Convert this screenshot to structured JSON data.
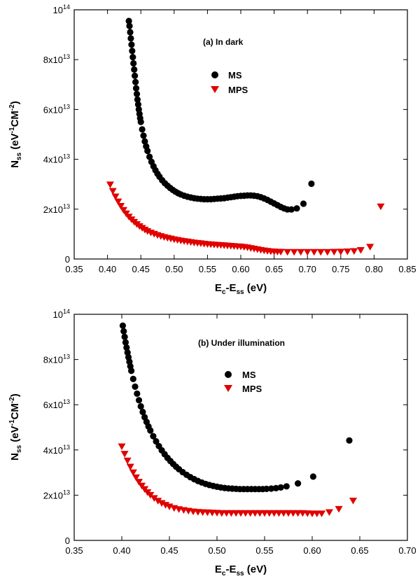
{
  "colors": {
    "MS": "#000000",
    "MPS": "#e00000"
  },
  "chart_data": [
    {
      "type": "scatter",
      "annotation": "(a) In dark",
      "title": "",
      "xlabel": {
        "main": "E",
        "sub1": "c",
        "mid": "-E",
        "sub2": "ss",
        "tail": " (eV)"
      },
      "ylabel": {
        "main": "N",
        "sub": "ss",
        "mid1": " (eV",
        "sup1": "-1",
        "mid2": "CM",
        "sup2": "-2",
        "tail": ")"
      },
      "xlim": [
        0.35,
        0.85
      ],
      "ylim": [
        0,
        100000000000000.0
      ],
      "xticks": [
        "0.35",
        "0.40",
        "0.45",
        "0.50",
        "0.55",
        "0.60",
        "0.65",
        "0.70",
        "0.75",
        "0.80",
        "0.85"
      ],
      "yticks": [
        {
          "value": 0,
          "base": "0",
          "exp": ""
        },
        {
          "value": 20000000000000.0,
          "base": "2x10",
          "exp": "13"
        },
        {
          "value": 40000000000000.0,
          "base": "4x10",
          "exp": "13"
        },
        {
          "value": 60000000000000.0,
          "base": "6x10",
          "exp": "13"
        },
        {
          "value": 80000000000000.0,
          "base": "8x10",
          "exp": "13"
        },
        {
          "value": 100000000000000.0,
          "base": "10",
          "exp": "14"
        }
      ],
      "legend": {
        "position": "upper-middle",
        "entries": [
          "MS",
          "MPS"
        ]
      },
      "series": [
        {
          "name": "MS",
          "marker": "circle",
          "x": [
            0.432,
            0.433,
            0.434,
            0.435,
            0.436,
            0.437,
            0.438,
            0.439,
            0.44,
            0.441,
            0.442,
            0.443,
            0.444,
            0.445,
            0.446,
            0.447,
            0.448,
            0.449,
            0.45,
            0.452,
            0.454,
            0.456,
            0.458,
            0.46,
            0.463,
            0.466,
            0.469,
            0.472,
            0.475,
            0.478,
            0.482,
            0.486,
            0.49,
            0.494,
            0.498,
            0.502,
            0.506,
            0.51,
            0.515,
            0.52,
            0.525,
            0.53,
            0.535,
            0.54,
            0.545,
            0.55,
            0.555,
            0.56,
            0.565,
            0.57,
            0.575,
            0.58,
            0.585,
            0.59,
            0.595,
            0.6,
            0.605,
            0.61,
            0.615,
            0.62,
            0.625,
            0.63,
            0.635,
            0.64,
            0.645,
            0.65,
            0.655,
            0.66,
            0.665,
            0.67,
            0.676,
            0.684,
            0.694,
            0.706
          ],
          "y": [
            95500000000000.0,
            93500000000000.0,
            91000000000000.0,
            88500000000000.0,
            86000000000000.0,
            83500000000000.0,
            81000000000000.0,
            78500000000000.0,
            76000000000000.0,
            73500000000000.0,
            71000000000000.0,
            68500000000000.0,
            66200000000000.0,
            64000000000000.0,
            62000000000000.0,
            60000000000000.0,
            58200000000000.0,
            56500000000000.0,
            55000000000000.0,
            52000000000000.0,
            49500000000000.0,
            47200000000000.0,
            45200000000000.0,
            43400000000000.0,
            41000000000000.0,
            39000000000000.0,
            37200000000000.0,
            35600000000000.0,
            34200000000000.0,
            33000000000000.0,
            31600000000000.0,
            30400000000000.0,
            29400000000000.0,
            28500000000000.0,
            27700000000000.0,
            27000000000000.0,
            26400000000000.0,
            25900000000000.0,
            25400000000000.0,
            25000000000000.0,
            24700000000000.0,
            24400000000000.0,
            24200000000000.0,
            24100000000000.0,
            24000000000000.0,
            24000000000000.0,
            24000000000000.0,
            24100000000000.0,
            24200000000000.0,
            24300000000000.0,
            24400000000000.0,
            24600000000000.0,
            24800000000000.0,
            25000000000000.0,
            25200000000000.0,
            25300000000000.0,
            25400000000000.0,
            25500000000000.0,
            25500000000000.0,
            25400000000000.0,
            25200000000000.0,
            24800000000000.0,
            24300000000000.0,
            23700000000000.0,
            23000000000000.0,
            22300000000000.0,
            21600000000000.0,
            20900000000000.0,
            20300000000000.0,
            19900000000000.0,
            19900000000000.0,
            20300000000000.0,
            22200000000000.0,
            30200000000000.0
          ]
        },
        {
          "name": "MPS",
          "marker": "triangle-down",
          "x": [
            0.404,
            0.408,
            0.412,
            0.416,
            0.42,
            0.424,
            0.428,
            0.432,
            0.436,
            0.44,
            0.444,
            0.448,
            0.452,
            0.456,
            0.46,
            0.465,
            0.47,
            0.475,
            0.48,
            0.485,
            0.49,
            0.495,
            0.5,
            0.505,
            0.51,
            0.515,
            0.52,
            0.525,
            0.53,
            0.535,
            0.54,
            0.545,
            0.55,
            0.555,
            0.56,
            0.565,
            0.57,
            0.575,
            0.58,
            0.585,
            0.59,
            0.595,
            0.6,
            0.605,
            0.61,
            0.615,
            0.62,
            0.625,
            0.63,
            0.635,
            0.64,
            0.645,
            0.65,
            0.655,
            0.66,
            0.67,
            0.68,
            0.69,
            0.7,
            0.71,
            0.72,
            0.73,
            0.74,
            0.75,
            0.76,
            0.77,
            0.78,
            0.794,
            0.81
          ],
          "y": [
            29800000000000.0,
            27200000000000.0,
            25000000000000.0,
            23000000000000.0,
            21200000000000.0,
            19600000000000.0,
            18200000000000.0,
            16900000000000.0,
            15800000000000.0,
            14800000000000.0,
            13900000000000.0,
            13100000000000.0,
            12400000000000.0,
            11700000000000.0,
            11100000000000.0,
            10500000000000.0,
            10000000000000.0,
            9500000000000.0,
            9100000000000.0,
            8700000000000.0,
            8400000000000.0,
            8100000000000.0,
            7800000000000.0,
            7550000000000.0,
            7300000000000.0,
            7100000000000.0,
            6900000000000.0,
            6700000000000.0,
            6500000000000.0,
            6350000000000.0,
            6200000000000.0,
            6050000000000.0,
            5900000000000.0,
            5800000000000.0,
            5700000000000.0,
            5600000000000.0,
            5500000000000.0,
            5400000000000.0,
            5300000000000.0,
            5200000000000.0,
            5100000000000.0,
            5000000000000.0,
            4900000000000.0,
            4750000000000.0,
            4550000000000.0,
            4300000000000.0,
            4050000000000.0,
            3800000000000.0,
            3550000000000.0,
            3350000000000.0,
            3150000000000.0,
            3000000000000.0,
            2900000000000.0,
            2850000000000.0,
            2800000000000.0,
            2750000000000.0,
            2750000000000.0,
            2750000000000.0,
            2750000000000.0,
            2750000000000.0,
            2750000000000.0,
            2750000000000.0,
            2800000000000.0,
            2850000000000.0,
            2950000000000.0,
            3100000000000.0,
            3500000000000.0,
            4800000000000.0,
            21000000000000.0
          ]
        }
      ]
    },
    {
      "type": "scatter",
      "annotation": "(b) Under illumination",
      "title": "",
      "xlabel": {
        "main": "E",
        "sub1": "c",
        "mid": "-E",
        "sub2": "ss",
        "tail": " (eV)"
      },
      "ylabel": {
        "main": "N",
        "sub": "ss",
        "mid1": " (eV",
        "sup1": "-1",
        "mid2": "CM",
        "sup2": "-2",
        "tail": ")"
      },
      "xlim": [
        0.35,
        0.7
      ],
      "ylim": [
        0,
        100000000000000.0
      ],
      "xticks": [
        "0.35",
        "0.40",
        "0.45",
        "0.50",
        "0.55",
        "0.60",
        "0.65",
        "0.70"
      ],
      "yticks": [
        {
          "value": 0,
          "base": "0",
          "exp": ""
        },
        {
          "value": 20000000000000.0,
          "base": "2x10",
          "exp": "13"
        },
        {
          "value": 40000000000000.0,
          "base": "4x10",
          "exp": "13"
        },
        {
          "value": 60000000000000.0,
          "base": "6x10",
          "exp": "13"
        },
        {
          "value": 80000000000000.0,
          "base": "8x10",
          "exp": "13"
        },
        {
          "value": 100000000000000.0,
          "base": "10",
          "exp": "14"
        }
      ],
      "legend": {
        "position": "upper-middle",
        "entries": [
          "MS",
          "MPS"
        ]
      },
      "series": [
        {
          "name": "MS",
          "marker": "circle",
          "x": [
            0.401,
            0.402,
            0.403,
            0.404,
            0.405,
            0.406,
            0.407,
            0.408,
            0.409,
            0.41,
            0.412,
            0.414,
            0.416,
            0.418,
            0.42,
            0.422,
            0.424,
            0.426,
            0.428,
            0.43,
            0.433,
            0.436,
            0.439,
            0.442,
            0.445,
            0.448,
            0.451,
            0.454,
            0.457,
            0.46,
            0.464,
            0.468,
            0.472,
            0.476,
            0.48,
            0.484,
            0.488,
            0.492,
            0.496,
            0.5,
            0.504,
            0.508,
            0.512,
            0.516,
            0.52,
            0.524,
            0.528,
            0.532,
            0.536,
            0.54,
            0.544,
            0.548,
            0.552,
            0.557,
            0.562,
            0.567,
            0.573,
            0.585,
            0.601,
            0.639
          ],
          "y": [
            95000000000000.0,
            92500000000000.0,
            90000000000000.0,
            87600000000000.0,
            85300000000000.0,
            83100000000000.0,
            81000000000000.0,
            79000000000000.0,
            77000000000000.0,
            75000000000000.0,
            71400000000000.0,
            68000000000000.0,
            64900000000000.0,
            62000000000000.0,
            59300000000000.0,
            56800000000000.0,
            54500000000000.0,
            52400000000000.0,
            50400000000000.0,
            48600000000000.0,
            46100000000000.0,
            43800000000000.0,
            41700000000000.0,
            39800000000000.0,
            38100000000000.0,
            36500000000000.0,
            35100000000000.0,
            33800000000000.0,
            32600000000000.0,
            31500000000000.0,
            30200000000000.0,
            29000000000000.0,
            28000000000000.0,
            27100000000000.0,
            26300000000000.0,
            25600000000000.0,
            25000000000000.0,
            24500000000000.0,
            24100000000000.0,
            23700000000000.0,
            23400000000000.0,
            23200000000000.0,
            23000000000000.0,
            22900000000000.0,
            22800000000000.0,
            22700000000000.0,
            22700000000000.0,
            22700000000000.0,
            22700000000000.0,
            22700000000000.0,
            22700000000000.0,
            22700000000000.0,
            22800000000000.0,
            22900000000000.0,
            23100000000000.0,
            23400000000000.0,
            23900000000000.0,
            25200000000000.0,
            28200000000000.0,
            44200000000000.0
          ]
        },
        {
          "name": "MPS",
          "marker": "triangle-down",
          "x": [
            0.4,
            0.403,
            0.406,
            0.409,
            0.412,
            0.415,
            0.418,
            0.421,
            0.424,
            0.427,
            0.43,
            0.434,
            0.438,
            0.442,
            0.446,
            0.45,
            0.455,
            0.46,
            0.465,
            0.47,
            0.475,
            0.48,
            0.485,
            0.49,
            0.495,
            0.5,
            0.505,
            0.51,
            0.515,
            0.52,
            0.525,
            0.53,
            0.535,
            0.54,
            0.545,
            0.55,
            0.555,
            0.56,
            0.565,
            0.57,
            0.575,
            0.58,
            0.585,
            0.59,
            0.595,
            0.6,
            0.605,
            0.61,
            0.618,
            0.628,
            0.643
          ],
          "y": [
            41500000000000.0,
            38200000000000.0,
            35200000000000.0,
            32500000000000.0,
            30000000000000.0,
            27800000000000.0,
            25800000000000.0,
            24100000000000.0,
            22600000000000.0,
            21200000000000.0,
            20000000000000.0,
            18600000000000.0,
            17400000000000.0,
            16400000000000.0,
            15600000000000.0,
            14900000000000.0,
            14200000000000.0,
            13700000000000.0,
            13300000000000.0,
            13000000000000.0,
            12700000000000.0,
            12500000000000.0,
            12400000000000.0,
            12300000000000.0,
            12200000000000.0,
            12100000000000.0,
            12000000000000.0,
            12000000000000.0,
            12000000000000.0,
            12000000000000.0,
            12000000000000.0,
            12000000000000.0,
            12000000000000.0,
            12000000000000.0,
            12000000000000.0,
            12000000000000.0,
            12000000000000.0,
            12000000000000.0,
            12000000000000.0,
            12000000000000.0,
            12000000000000.0,
            12000000000000.0,
            12000000000000.0,
            12000000000000.0,
            11900000000000.0,
            11800000000000.0,
            11800000000000.0,
            11800000000000.0,
            12400000000000.0,
            13800000000000.0,
            17500000000000.0
          ]
        }
      ]
    }
  ]
}
